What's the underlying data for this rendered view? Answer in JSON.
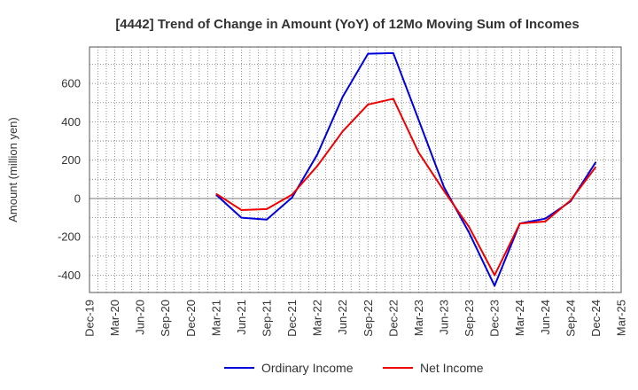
{
  "chart_data": {
    "type": "line",
    "title": "[4442]  Trend of Change in Amount (YoY) of 12Mo Moving Sum of Incomes",
    "ylabel": "Amount (million yen)",
    "xlabel": "",
    "ylim": [
      -490,
      790
    ],
    "yticks": [
      -400,
      -200,
      0,
      200,
      400,
      600
    ],
    "ytick_labels": [
      "-400",
      "-200",
      "0",
      "200",
      "400",
      "600"
    ],
    "x_labels": [
      "Dec-19",
      "Mar-20",
      "Jun-20",
      "Sep-20",
      "Dec-20",
      "Mar-21",
      "Jun-21",
      "Sep-21",
      "Dec-21",
      "Mar-22",
      "Jun-22",
      "Sep-22",
      "Dec-22",
      "Mar-23",
      "Jun-23",
      "Sep-23",
      "Dec-23",
      "Mar-24",
      "Jun-24",
      "Sep-24",
      "Dec-24",
      "Mar-25"
    ],
    "grid": true,
    "legend_position": "bottom",
    "series": [
      {
        "name": "Ordinary Income",
        "color": "#0000dd",
        "values": [
          null,
          null,
          null,
          null,
          null,
          20,
          -100,
          -110,
          5,
          230,
          530,
          755,
          758,
          410,
          60,
          -180,
          -455,
          -130,
          -105,
          -15,
          190,
          null
        ]
      },
      {
        "name": "Net Income",
        "color": "#ee0000",
        "values": [
          null,
          null,
          null,
          null,
          null,
          25,
          -60,
          -55,
          20,
          170,
          350,
          490,
          520,
          240,
          40,
          -150,
          -400,
          -130,
          -120,
          -10,
          165,
          null
        ]
      }
    ]
  }
}
